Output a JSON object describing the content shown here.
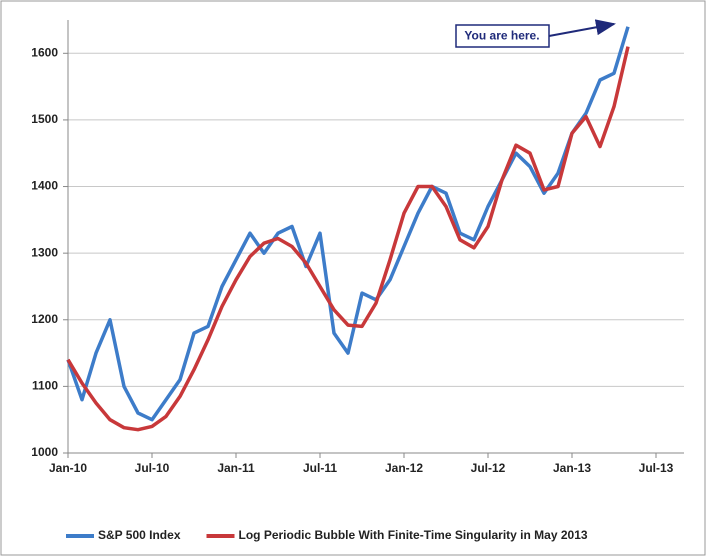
{
  "chart_data": {
    "type": "line",
    "annotation": "You are here.",
    "x": [
      "2010-01",
      "2010-02",
      "2010-03",
      "2010-04",
      "2010-05",
      "2010-06",
      "2010-07",
      "2010-08",
      "2010-09",
      "2010-10",
      "2010-11",
      "2010-12",
      "2011-01",
      "2011-02",
      "2011-03",
      "2011-04",
      "2011-05",
      "2011-06",
      "2011-07",
      "2011-08",
      "2011-09",
      "2011-10",
      "2011-11",
      "2011-12",
      "2012-01",
      "2012-02",
      "2012-03",
      "2012-04",
      "2012-05",
      "2012-06",
      "2012-07",
      "2012-08",
      "2012-09",
      "2012-10",
      "2012-11",
      "2012-12",
      "2013-01",
      "2013-02",
      "2013-03",
      "2013-04",
      "2013-05"
    ],
    "series": [
      {
        "name": "S&P 500 Index",
        "color": "#3d7cc9",
        "values": [
          1140,
          1080,
          1150,
          1200,
          1100,
          1060,
          1050,
          1080,
          1110,
          1180,
          1190,
          1250,
          1290,
          1330,
          1300,
          1330,
          1340,
          1280,
          1330,
          1180,
          1150,
          1240,
          1230,
          1260,
          1310,
          1360,
          1400,
          1390,
          1330,
          1320,
          1370,
          1410,
          1450,
          1430,
          1390,
          1420,
          1480,
          1510,
          1560,
          1570,
          1640
        ]
      },
      {
        "name": "Log Periodic Bubble With Finite-Time Singularity in May 2013",
        "color": "#c8383a",
        "values": [
          1140,
          1105,
          1075,
          1050,
          1038,
          1035,
          1040,
          1055,
          1085,
          1125,
          1170,
          1220,
          1260,
          1295,
          1315,
          1322,
          1310,
          1285,
          1250,
          1215,
          1192,
          1190,
          1225,
          1290,
          1360,
          1400,
          1400,
          1370,
          1320,
          1308,
          1340,
          1410,
          1462,
          1450,
          1395,
          1400,
          1480,
          1505,
          1460,
          1520,
          1610
        ]
      }
    ],
    "xlim": [
      "2010-01",
      "2013-09"
    ],
    "xticks": [
      {
        "value": "2010-01",
        "label": "Jan-10"
      },
      {
        "value": "2010-07",
        "label": "Jul-10"
      },
      {
        "value": "2011-01",
        "label": "Jan-11"
      },
      {
        "value": "2011-07",
        "label": "Jul-11"
      },
      {
        "value": "2012-01",
        "label": "Jan-12"
      },
      {
        "value": "2012-07",
        "label": "Jul-12"
      },
      {
        "value": "2013-01",
        "label": "Jan-13"
      },
      {
        "value": "2013-07",
        "label": "Jul-13"
      }
    ],
    "ylim": [
      1000,
      1650
    ],
    "yticks": [
      1000,
      1100,
      1200,
      1300,
      1400,
      1500,
      1600
    ],
    "grid": true,
    "legend": "bottom"
  }
}
